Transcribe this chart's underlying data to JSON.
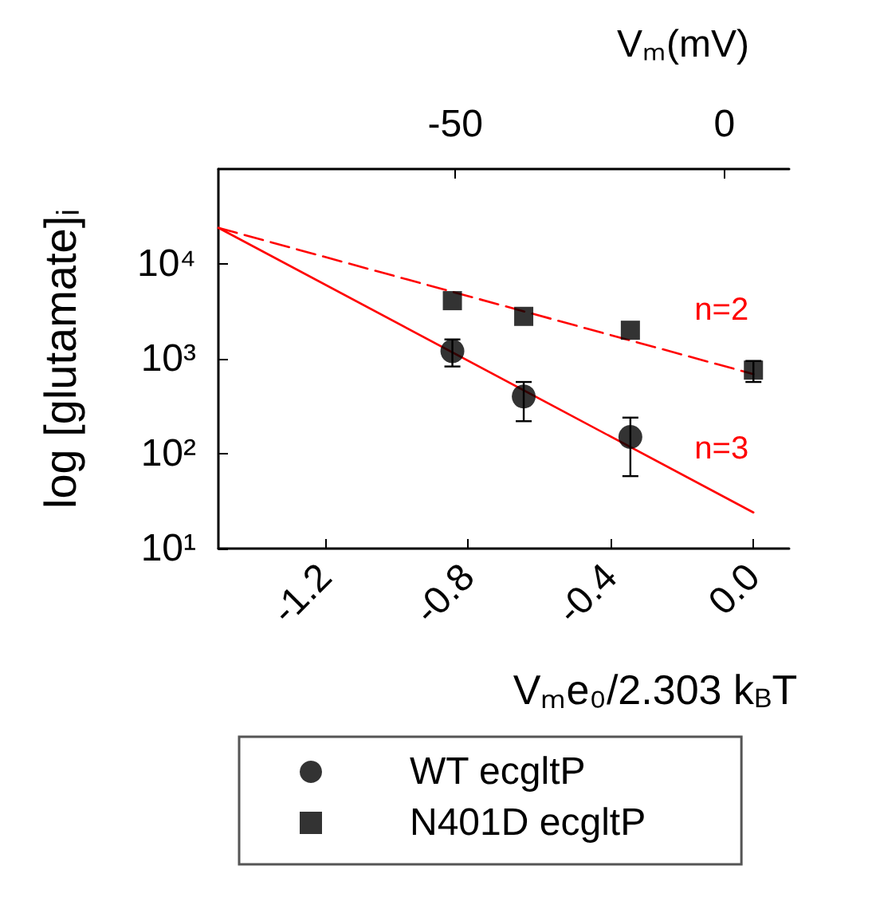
{
  "chart_data": {
    "type": "scatter",
    "xlabel": "Vₘe₀/2.303 k$_{B}$T",
    "ylabel": "log [glutamate]ᵢ",
    "x2label": "Vₘ(mV)",
    "xlim": [
      -1.5,
      0.1
    ],
    "xticks": [
      -1.2,
      -0.8,
      -0.4,
      {
        "value": 0,
        "label": "0.0"
      }
    ],
    "x2lim": [
      -94,
      12
    ],
    "x2ticks": [
      -50,
      0
    ],
    "ylim": [
      10,
      100000
    ],
    "yticks": [
      {
        "value": 10,
        "label": "10¹"
      },
      {
        "value": 100,
        "label": "10²"
      },
      {
        "value": 1000,
        "label": "10³"
      },
      {
        "value": 10000,
        "label": "10⁴"
      }
    ],
    "log": "y",
    "grid": false,
    "legend": "bottom",
    "series": [
      {
        "name": "WT ecgltP",
        "color": "#000000",
        "marker": "circle",
        "x": [
          -0.844,
          -0.644,
          -0.345
        ],
        "values": [
          1200,
          400,
          150
        ],
        "errors": [
          [
            830,
            1600
          ],
          [
            220,
            570
          ],
          [
            58,
            240
          ]
        ]
      },
      {
        "name": "N401D ecgltP",
        "color": "#000000",
        "marker": "square",
        "x": [
          -0.844,
          -0.644,
          -0.345,
          0.0
        ],
        "values": [
          4100,
          2800,
          2000,
          760
        ],
        "errors": [
          null,
          null,
          null,
          [
            570,
            950
          ]
        ]
      },
      {
        "type": "line",
        "color": "#ff0000",
        "line_style": "dashed",
        "marker": "none",
        "x": [
          -1.5,
          0.0
        ],
        "values": [
          24000,
          690
        ]
      },
      {
        "type": "line",
        "color": "#ff0000",
        "line_style": "solid",
        "marker": "none",
        "x": [
          -1.5,
          0.0
        ],
        "values": [
          24000,
          24
        ]
      }
    ],
    "annotations": [
      "n=2",
      "n=3"
    ]
  }
}
